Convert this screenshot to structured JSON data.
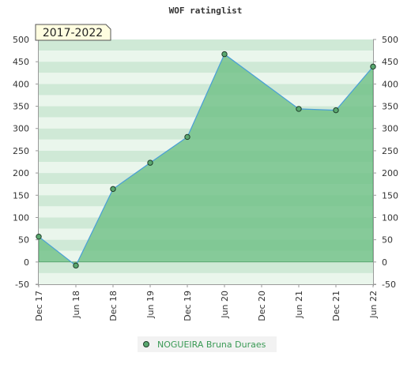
{
  "chart_data": {
    "type": "area",
    "title": "WOF ratinglist",
    "badge": "2017-2022",
    "ylim": [
      -50,
      500
    ],
    "yticks": [
      -50,
      0,
      50,
      100,
      150,
      200,
      250,
      300,
      350,
      400,
      450,
      500
    ],
    "x_labels": [
      "Dec 17",
      "Jun 18",
      "Dec 18",
      "Jun 19",
      "Dec 19",
      "Jun 20",
      "Dec 20",
      "Jun 21",
      "Dec 21",
      "Jun 22"
    ],
    "series": [
      {
        "name": "NOGUEIRA Bruna Duraes",
        "x": [
          "Dec 17",
          "Jun 18",
          "Dec 18",
          "Jun 19",
          "Dec 19",
          "Jun 20",
          "Jun 21",
          "Dec 21",
          "Jun 22"
        ],
        "values": [
          57,
          -8,
          164,
          223,
          281,
          467,
          344,
          341,
          439
        ]
      }
    ],
    "legend_position": "bottom",
    "grid": true,
    "colors": {
      "area_fill": "#6dbf85",
      "line": "#4a9fd8",
      "marker_fill": "#5aa86f",
      "marker_stroke": "#1f3d2a",
      "legend_text": "#3a9a55",
      "badge_bg": "#fffde0",
      "badge_border": "#555555",
      "band_dark": "#cfe9d6",
      "band_light": "#eaf6ec"
    }
  }
}
